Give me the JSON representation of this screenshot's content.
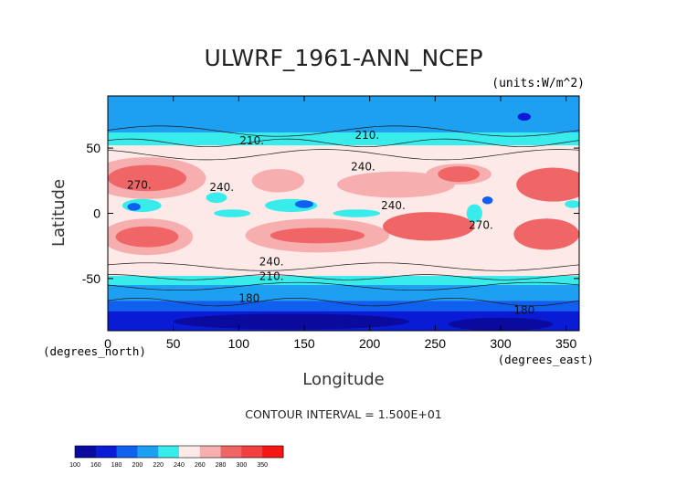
{
  "chart_data": {
    "type": "heatmap",
    "title": "ULWRF_1961-ANN_NCEP",
    "units": "(units:W/m^2)",
    "xlabel": "Longitude",
    "ylabel": "Latitude",
    "x_unit_note": "(degrees_east)",
    "y_unit_note": "(degrees_north)",
    "xlim": [
      0,
      360
    ],
    "ylim": [
      -90,
      90
    ],
    "x_ticks": [
      0,
      50,
      100,
      150,
      200,
      250,
      300,
      350
    ],
    "y_ticks": [
      -50,
      0,
      50
    ],
    "x_tick_labels": [
      "0",
      "50",
      "100",
      "150",
      "200",
      "250",
      "300",
      "350"
    ],
    "y_tick_labels": [
      "-50",
      "0",
      "50"
    ],
    "contour_interval": "CONTOUR INTERVAL = 1.500E+01",
    "contour_labels": [
      {
        "text": "210.",
        "lon": 110,
        "lat": 53
      },
      {
        "text": "210.",
        "lon": 198,
        "lat": 57
      },
      {
        "text": "240.",
        "lon": 195,
        "lat": 33
      },
      {
        "text": "270.",
        "lon": 24,
        "lat": 19
      },
      {
        "text": "240.",
        "lon": 87,
        "lat": 17
      },
      {
        "text": "240.",
        "lon": 218,
        "lat": 3
      },
      {
        "text": "240.",
        "lon": 125,
        "lat": -40
      },
      {
        "text": "210.",
        "lon": 125,
        "lat": -51
      },
      {
        "text": "180",
        "lon": 108,
        "lat": -68
      },
      {
        "text": "180",
        "lon": 318,
        "lat": -77
      },
      {
        "text": "270.",
        "lon": 285,
        "lat": -12
      }
    ],
    "colorbar": {
      "levels": [
        "100",
        "160",
        "180",
        "200",
        "220",
        "240",
        "260",
        "280",
        "300",
        "350"
      ],
      "colors": [
        "#0a0a9e",
        "#0a1bd6",
        "#1060f0",
        "#1ea0f2",
        "#38ecec",
        "#fde9e8",
        "#f6aeae",
        "#f06565",
        "#f23f3f",
        "#f71616"
      ]
    },
    "grid": false,
    "legend": "colorbar at bottom-left"
  }
}
